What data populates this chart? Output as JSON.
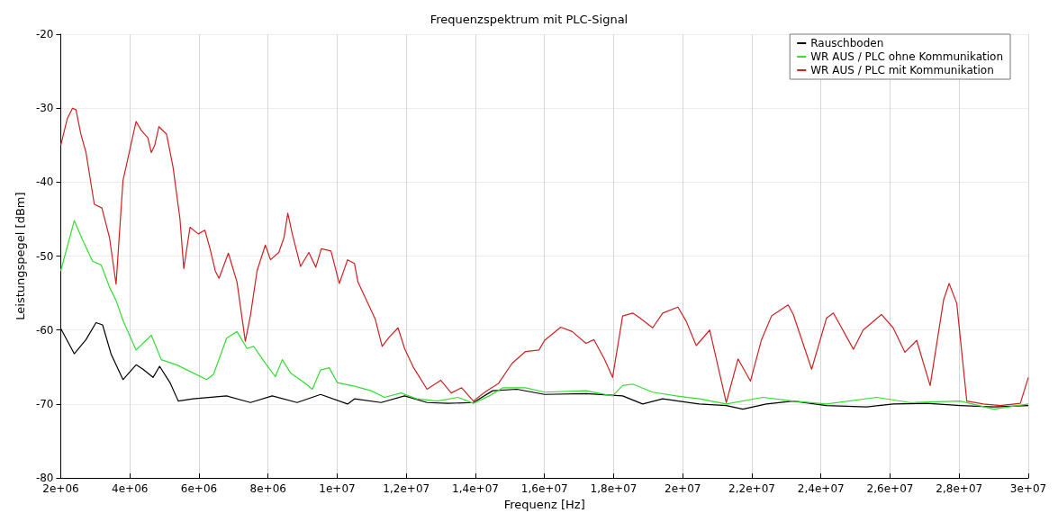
{
  "chart_data": {
    "type": "line",
    "title": "Frequenzspektrum mit PLC-Signal",
    "xlabel": "Frequenz [Hz]",
    "ylabel": "Leistungspegel [dBm]",
    "xlim": [
      2000000.0,
      30000000.0
    ],
    "ylim": [
      -80,
      -20
    ],
    "xticks": [
      {
        "value": 2000000.0,
        "label": "2e+06"
      },
      {
        "value": 4000000.0,
        "label": "4e+06"
      },
      {
        "value": 6000000.0,
        "label": "6e+06"
      },
      {
        "value": 8000000.0,
        "label": "8e+06"
      },
      {
        "value": 10000000.0,
        "label": "1e+07"
      },
      {
        "value": 12000000.0,
        "label": "1,2e+07"
      },
      {
        "value": 14000000.0,
        "label": "1,4e+07"
      },
      {
        "value": 16000000.0,
        "label": "1,6e+07"
      },
      {
        "value": 18000000.0,
        "label": "1,8e+07"
      },
      {
        "value": 20000000.0,
        "label": "2e+07"
      },
      {
        "value": 22000000.0,
        "label": "2,2e+07"
      },
      {
        "value": 24000000.0,
        "label": "2,4e+07"
      },
      {
        "value": 26000000.0,
        "label": "2,6e+07"
      },
      {
        "value": 28000000.0,
        "label": "2,8e+07"
      },
      {
        "value": 30000000.0,
        "label": "3e+07"
      }
    ],
    "yticks": [
      -80,
      -70,
      -60,
      -50,
      -40,
      -30,
      -20
    ],
    "grid": true,
    "legend": "top right",
    "marker": "none",
    "line_style": "solid",
    "series": [
      {
        "name": "Rauschboden",
        "color": "#000000",
        "x": [
          2000000.0,
          2390000.0,
          2730000.0,
          3020000.0,
          3210000.0,
          3460000.0,
          3800000.0,
          4180000.0,
          4380000.0,
          4670000.0,
          4860000.0,
          5160000.0,
          5400000.0,
          5830000.0,
          6800000.0,
          7490000.0,
          8120000.0,
          8840000.0,
          9520000.0,
          10300000.0,
          10500000.0,
          11270000.0,
          11950000.0,
          12600000.0,
          13200000.0,
          13940000.0,
          14500000.0,
          15200000.0,
          16000000.0,
          17200000.0,
          18260000.0,
          18840000.0,
          19420000.0,
          20480000.0,
          21260000.0,
          21740000.0,
          22420000.0,
          23200000.0,
          24160000.0,
          25320000.0,
          26090000.0,
          27060000.0,
          28030000.0,
          29000000.0,
          30000000.0
        ],
        "values": [
          -59.8,
          -63.2,
          -61.3,
          -59,
          -59.3,
          -63.3,
          -66.7,
          -64.7,
          -65.3,
          -66.4,
          -64.9,
          -67.1,
          -69.6,
          -69.3,
          -68.9,
          -69.8,
          -68.9,
          -69.8,
          -68.7,
          -70,
          -69.3,
          -69.8,
          -68.9,
          -69.8,
          -69.9,
          -69.8,
          -68.2,
          -68,
          -68.7,
          -68.6,
          -68.9,
          -70,
          -69.3,
          -70,
          -70.2,
          -70.7,
          -70,
          -69.6,
          -70.2,
          -70.4,
          -70,
          -69.9,
          -70.2,
          -70.4,
          -70.2
        ]
      },
      {
        "name": "WR AUS / PLC ohne Kommunikation",
        "color": "#33dd33",
        "x": [
          2000000.0,
          2390000.0,
          2630000.0,
          2920000.0,
          3170000.0,
          3410000.0,
          3600000.0,
          3800000.0,
          4180000.0,
          4620000.0,
          4910000.0,
          5350000.0,
          5830000.0,
          6220000.0,
          6420000.0,
          6800000.0,
          7100000.0,
          7390000.0,
          7580000.0,
          7920000.0,
          8210000.0,
          8410000.0,
          8650000.0,
          9040000.0,
          9280000.0,
          9520000.0,
          9770000.0,
          10000000.0,
          10500000.0,
          10980000.0,
          11370000.0,
          11850000.0,
          12300000.0,
          12900000.0,
          13500000.0,
          13940000.0,
          14400000.0,
          14800000.0,
          15450000.0,
          16000000.0,
          17200000.0,
          17970000.0,
          18260000.0,
          18550000.0,
          19130000.0,
          19810000.0,
          20480000.0,
          21260000.0,
          22320000.0,
          23200000.0,
          24160000.0,
          25610000.0,
          26580000.0,
          28030000.0,
          29000000.0,
          30000000.0
        ],
        "values": [
          -52,
          -45.2,
          -47.8,
          -50.7,
          -51.2,
          -54.2,
          -56,
          -58.7,
          -62.7,
          -60.7,
          -64,
          -64.7,
          -65.8,
          -66.7,
          -66,
          -61.1,
          -60.2,
          -62.5,
          -62.2,
          -64.5,
          -66.3,
          -64,
          -65.8,
          -67.1,
          -68,
          -65.4,
          -65.1,
          -67.1,
          -67.6,
          -68.2,
          -69.1,
          -68.5,
          -69.3,
          -69.6,
          -69.1,
          -69.9,
          -68.9,
          -67.8,
          -67.8,
          -68.4,
          -68.2,
          -68.9,
          -67.5,
          -67.3,
          -68.4,
          -68.9,
          -69.3,
          -70,
          -69.1,
          -69.6,
          -70,
          -69.1,
          -69.8,
          -69.6,
          -70.7,
          -70
        ]
      },
      {
        "name": "WR AUS / PLC mit Kommunikation",
        "color": "#cc2222",
        "x": [
          2000000.0,
          2190000.0,
          2340000.0,
          2440000.0,
          2580000.0,
          2730000.0,
          2970000.0,
          3190000.0,
          3410000.0,
          3600000.0,
          3800000.0,
          3990000.0,
          4180000.0,
          4330000.0,
          4520000.0,
          4620000.0,
          4720000.0,
          4840000.0,
          5060000.0,
          5250000.0,
          5450000.0,
          5560000.0,
          5740000.0,
          5980000.0,
          6170000.0,
          6320000.0,
          6470000.0,
          6580000.0,
          6850000.0,
          7100000.0,
          7340000.0,
          7490000.0,
          7680000.0,
          7920000.0,
          8070000.0,
          8310000.0,
          8460000.0,
          8570000.0,
          8700000.0,
          8940000.0,
          9180000.0,
          9380000.0,
          9540000.0,
          9820000.0,
          10060000.0,
          10300000.0,
          10500000.0,
          10600000.0,
          10900000.0,
          11100000.0,
          11300000.0,
          11500000.0,
          11760000.0,
          11950000.0,
          12200000.0,
          12400000.0,
          12600000.0,
          13000000.0,
          13300000.0,
          13600000.0,
          13940000.0,
          14300000.0,
          14670000.0,
          15060000.0,
          15450000.0,
          15840000.0,
          16000000.0,
          16470000.0,
          16800000.0,
          17200000.0,
          17430000.0,
          17730000.0,
          17970000.0,
          18260000.0,
          18550000.0,
          18740000.0,
          19130000.0,
          19420000.0,
          19860000.0,
          20100000.0,
          20390000.0,
          20780000.0,
          21260000.0,
          21600000.0,
          21960000.0,
          22280000.0,
          22570000.0,
          23050000.0,
          23200000.0,
          23730000.0,
          24160000.0,
          24360000.0,
          24940000.0,
          25220000.0,
          25750000.0,
          26090000.0,
          26430000.0,
          26770000.0,
          27160000.0,
          27550000.0,
          27710000.0,
          27930000.0,
          28220000.0,
          28700000.0,
          29190000.0,
          29770000.0,
          30000000.0
        ],
        "values": [
          -35,
          -31.4,
          -30,
          -30.2,
          -33.5,
          -36,
          -43,
          -43.5,
          -47.5,
          -53.8,
          -39.8,
          -35.8,
          -31.8,
          -33,
          -34,
          -36,
          -35,
          -32.5,
          -33.5,
          -38,
          -45,
          -51.7,
          -46.1,
          -47,
          -46.5,
          -49,
          -52,
          -53,
          -49.6,
          -53.5,
          -61.5,
          -58,
          -52,
          -48.5,
          -50.5,
          -49.5,
          -47.5,
          -44.2,
          -47,
          -51.4,
          -49.5,
          -51.5,
          -49,
          -49.3,
          -53.7,
          -50.5,
          -51,
          -53.5,
          -56.5,
          -58.5,
          -62.2,
          -61,
          -59.7,
          -62.5,
          -65,
          -66.5,
          -68,
          -66.8,
          -68.5,
          -67.8,
          -69.6,
          -68.3,
          -67.2,
          -64.5,
          -62.9,
          -62.7,
          -61.4,
          -59.6,
          -60.2,
          -61.8,
          -61.3,
          -63.9,
          -66.4,
          -58.1,
          -57.7,
          -58.3,
          -59.7,
          -57.7,
          -56.9,
          -58.8,
          -62.1,
          -60,
          -69.8,
          -63.9,
          -66.9,
          -61.3,
          -58.1,
          -56.6,
          -57.9,
          -65.3,
          -58.4,
          -57.7,
          -62.6,
          -60,
          -57.9,
          -59.7,
          -63,
          -61.4,
          -67.5,
          -55.9,
          -53.7,
          -56.4,
          -69.6,
          -70,
          -70.2,
          -69.9,
          -66.4
        ]
      }
    ]
  }
}
